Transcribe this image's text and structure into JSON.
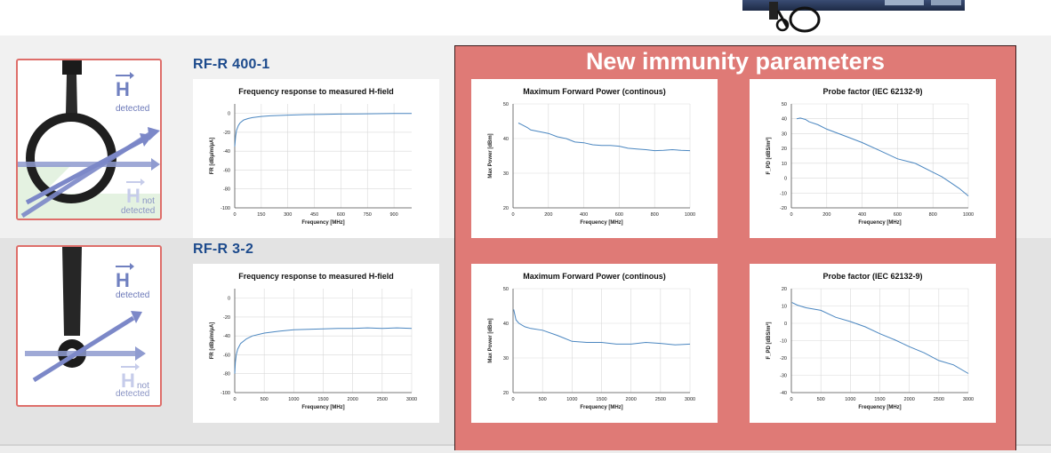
{
  "top": {
    "product_image": "probe-product-photo"
  },
  "probes": [
    {
      "model": "RF-R 400-1",
      "icon": "loop-probe-illustration",
      "h_detected": {
        "letter": "H",
        "caption": "detected"
      },
      "h_not_detected": {
        "letter": "H",
        "sub": "not",
        "caption": "detected"
      }
    },
    {
      "model": "RF-R 3-2",
      "icon": "stick-probe-illustration",
      "h_detected": {
        "letter": "H",
        "caption": "detected"
      },
      "h_not_detected": {
        "letter": "H",
        "sub": "not",
        "caption": "detected"
      }
    }
  ],
  "panel": {
    "title": "New immunity parameters"
  },
  "colors": {
    "accent_panel": "#df7a76",
    "model_title": "#1c4a8c",
    "line": "#4a86c0",
    "probe_border": "#de6e6a"
  },
  "chart_data": [
    {
      "id": "fr1",
      "type": "line",
      "title": "Frequency response to measured H-field",
      "xlabel": "Frequency [MHz]",
      "ylabel": "FR [dBµ/m/µA]",
      "xlim": [
        0,
        1000
      ],
      "ylim": [
        -100,
        10
      ],
      "xticks": [
        0,
        150,
        300,
        450,
        600,
        750,
        900
      ],
      "yticks": [
        0,
        -20,
        -40,
        -60,
        -80,
        -100
      ],
      "grid": true,
      "series": [
        {
          "x": [
            0,
            5,
            10,
            20,
            30,
            50,
            75,
            100,
            150,
            200,
            300,
            400,
            500,
            600,
            700,
            800,
            900,
            1000
          ],
          "values": [
            -35,
            -24,
            -18,
            -13,
            -10,
            -7,
            -5.5,
            -4.5,
            -3.3,
            -2.6,
            -1.8,
            -1.3,
            -1,
            -0.7,
            -0.5,
            -0.3,
            -0.2,
            -0.2
          ]
        }
      ]
    },
    {
      "id": "fr2",
      "type": "line",
      "title": "Frequency response to measured H-field",
      "xlabel": "Frequency [MHz]",
      "ylabel": "FR [dBµ/m/µA]",
      "xlim": [
        0,
        3000
      ],
      "ylim": [
        -100,
        10
      ],
      "xticks": [
        0,
        500,
        1000,
        1500,
        2000,
        2500,
        3000
      ],
      "yticks": [
        0,
        -20,
        -40,
        -60,
        -80,
        -100
      ],
      "grid": true,
      "series": [
        {
          "x": [
            0,
            10,
            25,
            50,
            100,
            200,
            300,
            500,
            750,
            1000,
            1250,
            1500,
            1750,
            2000,
            2250,
            2500,
            2750,
            3000
          ],
          "values": [
            -80,
            -68,
            -60,
            -54,
            -48,
            -43,
            -40,
            -37,
            -35,
            -33.5,
            -33,
            -32.5,
            -32,
            -32,
            -31.5,
            -32,
            -31.5,
            -32
          ]
        }
      ]
    },
    {
      "id": "mfp1",
      "type": "line",
      "title": "Maximum Forward Power (continous)",
      "xlabel": "Frequency [MHz]",
      "ylabel": "Max Power [dBm]",
      "xlim": [
        0,
        1000
      ],
      "ylim": [
        20,
        50
      ],
      "xticks": [
        0,
        200,
        400,
        600,
        800,
        1000
      ],
      "yticks": [
        50,
        40,
        30,
        20
      ],
      "grid": true,
      "series": [
        {
          "x": [
            30,
            50,
            80,
            100,
            150,
            200,
            250,
            300,
            350,
            400,
            450,
            500,
            550,
            600,
            650,
            700,
            750,
            800,
            850,
            900,
            950,
            1000
          ],
          "values": [
            44.5,
            44,
            43.2,
            42.5,
            42,
            41.5,
            40.5,
            40,
            39,
            38.8,
            38.2,
            38,
            38,
            37.8,
            37.2,
            37,
            36.8,
            36.5,
            36.6,
            36.8,
            36.6,
            36.5
          ]
        }
      ]
    },
    {
      "id": "pf1",
      "type": "line",
      "title": "Probe factor (IEC 62132-9)",
      "xlabel": "Frequency [MHz]",
      "ylabel": "F_PD [dBS/m²]",
      "xlim": [
        0,
        1000
      ],
      "ylim": [
        -20,
        50
      ],
      "xticks": [
        0,
        200,
        400,
        600,
        800,
        1000
      ],
      "yticks": [
        50,
        40,
        30,
        20,
        10,
        0,
        -10,
        -20
      ],
      "grid": true,
      "series": [
        {
          "x": [
            30,
            50,
            80,
            100,
            150,
            200,
            300,
            400,
            500,
            600,
            700,
            800,
            850,
            900,
            950,
            1000
          ],
          "values": [
            40,
            40.5,
            39.5,
            38,
            36,
            33,
            28.5,
            24,
            18.5,
            13,
            10,
            4,
            1,
            -3,
            -7,
            -12
          ]
        }
      ]
    },
    {
      "id": "mfp2",
      "type": "line",
      "title": "Maximum Forward Power (continous)",
      "xlabel": "Frequency [MHz]",
      "ylabel": "Max Power [dBm]",
      "xlim": [
        0,
        3000
      ],
      "ylim": [
        20,
        50
      ],
      "xticks": [
        0,
        500,
        1000,
        1500,
        2000,
        2500,
        3000
      ],
      "yticks": [
        50,
        40,
        30,
        20
      ],
      "grid": true,
      "series": [
        {
          "x": [
            10,
            50,
            100,
            200,
            300,
            500,
            750,
            1000,
            1250,
            1500,
            1750,
            2000,
            2250,
            2500,
            2750,
            3000
          ],
          "values": [
            44,
            41,
            40,
            39,
            38.5,
            38,
            36.5,
            34.8,
            34.5,
            34.5,
            34,
            34,
            34.5,
            34.2,
            33.8,
            34
          ]
        }
      ]
    },
    {
      "id": "pf2",
      "type": "line",
      "title": "Probe factor (IEC 62132-9)",
      "xlabel": "Frequency [MHz]",
      "ylabel": "F_PD [dBS/m²]",
      "xlim": [
        0,
        3000
      ],
      "ylim": [
        -40,
        20
      ],
      "xticks": [
        0,
        500,
        1000,
        1500,
        2000,
        2500,
        3000
      ],
      "yticks": [
        20,
        10,
        0,
        -10,
        -20,
        -30,
        -40
      ],
      "grid": true,
      "series": [
        {
          "x": [
            10,
            100,
            250,
            500,
            750,
            1000,
            1250,
            1500,
            1750,
            2000,
            2250,
            2500,
            2750,
            3000
          ],
          "values": [
            12,
            10.5,
            9,
            7.5,
            3.5,
            1,
            -2,
            -6,
            -9.5,
            -13.5,
            -17,
            -21.5,
            -24,
            -29
          ]
        }
      ]
    }
  ]
}
